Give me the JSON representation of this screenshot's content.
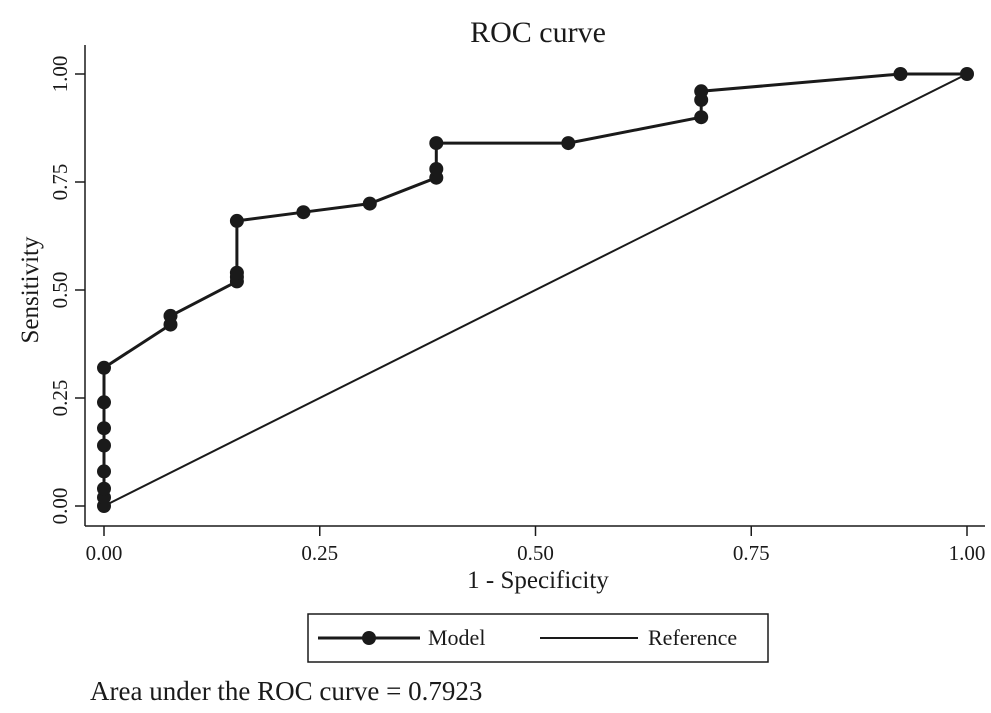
{
  "chart_data": {
    "type": "line",
    "title": "ROC curve",
    "xlabel": "1 - Specificity",
    "ylabel": "Sensitivity",
    "xlim": [
      0,
      1
    ],
    "ylim": [
      0,
      1
    ],
    "x_ticks": [
      "0.00",
      "0.25",
      "0.50",
      "0.75",
      "1.00"
    ],
    "y_ticks": [
      "0.00",
      "0.25",
      "0.50",
      "0.75",
      "1.00"
    ],
    "grid": false,
    "legend_position": "bottom",
    "series": [
      {
        "name": "Model",
        "marker": "circle",
        "color": "#1a1a1a",
        "points": [
          [
            0,
            0
          ],
          [
            0,
            0.02
          ],
          [
            0,
            0.04
          ],
          [
            0,
            0.08
          ],
          [
            0,
            0.14
          ],
          [
            0,
            0.18
          ],
          [
            0,
            0.24
          ],
          [
            0,
            0.32
          ],
          [
            0.077,
            0.42
          ],
          [
            0.077,
            0.44
          ],
          [
            0.154,
            0.52
          ],
          [
            0.154,
            0.53
          ],
          [
            0.154,
            0.54
          ],
          [
            0.154,
            0.66
          ],
          [
            0.231,
            0.68
          ],
          [
            0.308,
            0.7
          ],
          [
            0.385,
            0.76
          ],
          [
            0.385,
            0.78
          ],
          [
            0.385,
            0.84
          ],
          [
            0.538,
            0.84
          ],
          [
            0.692,
            0.9
          ],
          [
            0.692,
            0.94
          ],
          [
            0.692,
            0.96
          ],
          [
            0.923,
            1.0
          ],
          [
            1.0,
            1.0
          ]
        ]
      },
      {
        "name": "Reference",
        "marker": "none",
        "color": "#1a1a1a",
        "points": [
          [
            0,
            0
          ],
          [
            1,
            1
          ]
        ]
      }
    ],
    "annotation": "Area under the ROC curve = 0.7923",
    "auc": 0.7923
  }
}
